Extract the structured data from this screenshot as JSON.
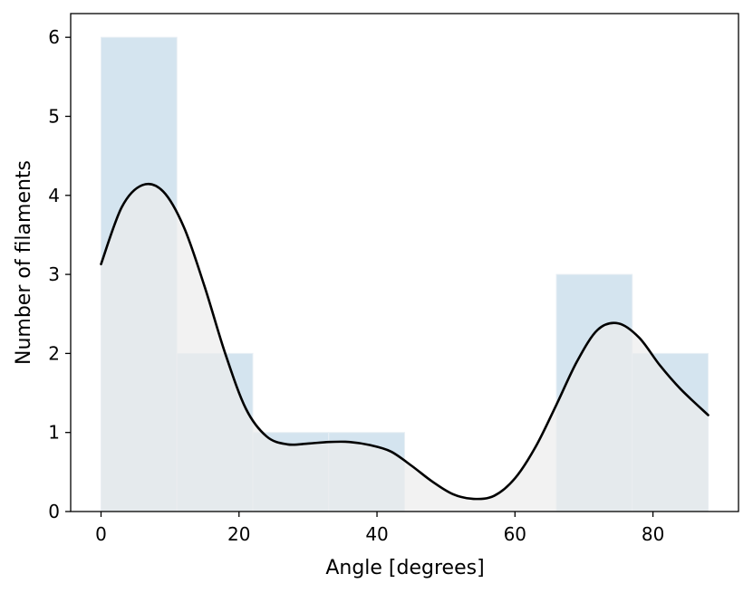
{
  "chart_data": {
    "type": "bar",
    "subtype": "histogram with density curve",
    "title": "",
    "xlabel": "Angle [degrees]",
    "ylabel": "Number of filaments",
    "xlim": [
      -4.4,
      92.4
    ],
    "ylim": [
      0,
      6.3
    ],
    "xticks": [
      0,
      20,
      40,
      60,
      80
    ],
    "yticks": [
      0,
      1,
      2,
      3,
      4,
      5,
      6
    ],
    "grid": false,
    "bins": [
      {
        "x0": 0,
        "x1": 11,
        "count": 6
      },
      {
        "x0": 11,
        "x1": 22,
        "count": 2
      },
      {
        "x0": 22,
        "x1": 33,
        "count": 1
      },
      {
        "x0": 33,
        "x1": 44,
        "count": 1
      },
      {
        "x0": 44,
        "x1": 55,
        "count": 0
      },
      {
        "x0": 55,
        "x1": 66,
        "count": 0
      },
      {
        "x0": 66,
        "x1": 77,
        "count": 3
      },
      {
        "x0": 77,
        "x1": 88,
        "count": 2
      }
    ],
    "density_curve": {
      "x": [
        0,
        3,
        6,
        9,
        12,
        15,
        18,
        21,
        24,
        27,
        30,
        33,
        36,
        39,
        42,
        45,
        48,
        51,
        54,
        57,
        60,
        63,
        66,
        69,
        72,
        75,
        78,
        81,
        84,
        88
      ],
      "y": [
        3.13,
        3.85,
        4.13,
        4.05,
        3.6,
        2.85,
        2.0,
        1.3,
        0.95,
        0.85,
        0.86,
        0.88,
        0.88,
        0.84,
        0.76,
        0.58,
        0.38,
        0.22,
        0.16,
        0.2,
        0.42,
        0.82,
        1.35,
        1.9,
        2.3,
        2.38,
        2.2,
        1.85,
        1.55,
        1.22
      ]
    },
    "colors": {
      "bar_fill": "#d4e4ef",
      "bar_edge": "#e8eff4",
      "kde_fill": "#ececec",
      "kde_line": "#000000"
    }
  }
}
